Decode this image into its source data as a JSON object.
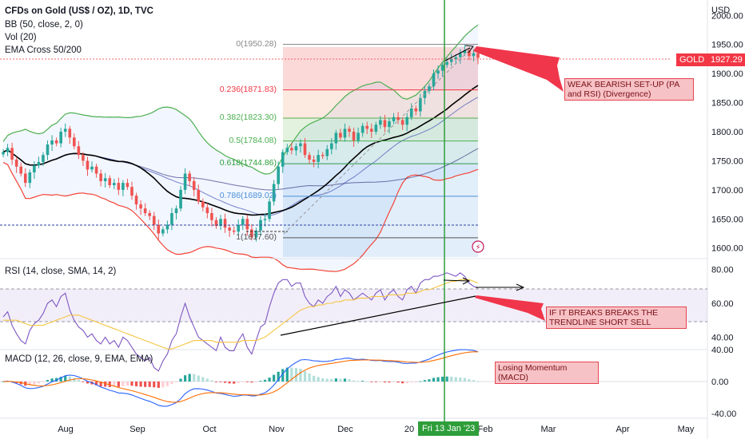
{
  "header": {
    "title": "CFDs on Gold (US$ / OZ), 1D, TVC",
    "indicators": [
      "BB (50, close, 2, 0)",
      "Vol (20)",
      "EMA Cross 50/200"
    ]
  },
  "currency": "USD",
  "price_badge": {
    "symbol": "GOLD",
    "price": "1927.29",
    "color": "#f23645"
  },
  "crosshair_date": "Fri 13 Jan '23",
  "x_ticks": [
    "Aug",
    "Sep",
    "Oct",
    "Nov",
    "Dec",
    "20",
    "Feb",
    "Mar",
    "Apr",
    "May"
  ],
  "fib_labels": [
    "0(1950.28)",
    "0.236(1871.83)",
    "0.382(1823.30)",
    "0.5(1784.08)",
    "0.618(1744.86)",
    "0.786(1689.02)",
    "1(1617.60)"
  ],
  "annotations": {
    "weak_bearish": "WEAK BEARISH SET-UP (PA and RSI) (Divergence)",
    "trendline_break": "IF IT BREAKS BREAKS THE TRENDLINE SHORT SELL",
    "losing_momentum": "Losing Momentum (MACD)"
  },
  "rsi_panel": {
    "label": "RSI (14, close, SMA, 14, 2)"
  },
  "macd_panel": {
    "label": "MACD (12, 26, close, 9, EMA, EMA)"
  },
  "colors": {
    "up": "#26a69a",
    "down": "#ef5350",
    "accent": "#f23645",
    "crosshair": "#2e9e3a"
  },
  "chart_data": [
    {
      "type": "candlestick",
      "title": "CFDs on Gold (US$ / OZ), 1D, TVC",
      "ylabel": "USD",
      "ylim": [
        1590,
        2010
      ],
      "y_ticks": [
        1600,
        1650,
        1700,
        1750,
        1800,
        1850,
        1900,
        1950,
        2000
      ],
      "x_ticks": [
        "Aug",
        "Sep",
        "Oct",
        "Nov",
        "Dec",
        "20",
        "Feb",
        "Mar",
        "Apr",
        "May"
      ],
      "close_series": [
        1765,
        1772,
        1752,
        1740,
        1728,
        1712,
        1730,
        1742,
        1748,
        1760,
        1778,
        1785,
        1780,
        1800,
        1805,
        1790,
        1775,
        1760,
        1750,
        1735,
        1740,
        1728,
        1715,
        1720,
        1708,
        1712,
        1700,
        1712,
        1705,
        1690,
        1675,
        1668,
        1660,
        1655,
        1640,
        1625,
        1632,
        1640,
        1660,
        1668,
        1700,
        1728,
        1715,
        1700,
        1680,
        1670,
        1660,
        1648,
        1638,
        1650,
        1635,
        1630,
        1628,
        1640,
        1650,
        1632,
        1618,
        1630,
        1648,
        1650,
        1680,
        1710,
        1740,
        1765,
        1772,
        1768,
        1775,
        1780,
        1760,
        1752,
        1748,
        1760,
        1758,
        1770,
        1780,
        1798,
        1790,
        1805,
        1800,
        1785,
        1798,
        1810,
        1805,
        1800,
        1812,
        1820,
        1808,
        1818,
        1825,
        1820,
        1812,
        1825,
        1840,
        1835,
        1858,
        1870,
        1878,
        1900,
        1905,
        1915,
        1920,
        1925,
        1928,
        1935,
        1940,
        1930,
        1935,
        1927
      ],
      "fib_levels": [
        {
          "ratio": 0,
          "price": 1950.28
        },
        {
          "ratio": 0.236,
          "price": 1871.83
        },
        {
          "ratio": 0.382,
          "price": 1823.3
        },
        {
          "ratio": 0.5,
          "price": 1784.08
        },
        {
          "ratio": 0.618,
          "price": 1744.86
        },
        {
          "ratio": 0.786,
          "price": 1689.02
        },
        {
          "ratio": 1,
          "price": 1617.6
        }
      ],
      "last_price": 1927.29
    },
    {
      "type": "line",
      "title": "RSI (14, close, SMA, 14, 2)",
      "ylim": [
        35,
        85
      ],
      "y_ticks": [
        40,
        60,
        80
      ],
      "rsi": [
        52,
        55,
        47,
        42,
        38,
        36,
        44,
        48,
        50,
        54,
        60,
        62,
        58,
        64,
        66,
        56,
        50,
        46,
        44,
        40,
        42,
        38,
        36,
        40,
        36,
        38,
        34,
        40,
        38,
        34,
        30,
        28,
        26,
        28,
        22,
        20,
        26,
        30,
        38,
        42,
        52,
        60,
        52,
        46,
        40,
        38,
        36,
        34,
        32,
        40,
        34,
        32,
        32,
        38,
        42,
        34,
        30,
        38,
        46,
        48,
        58,
        66,
        72,
        74,
        74,
        70,
        72,
        72,
        64,
        60,
        58,
        62,
        60,
        64,
        66,
        70,
        64,
        68,
        66,
        62,
        64,
        66,
        64,
        62,
        66,
        68,
        62,
        66,
        68,
        64,
        62,
        68,
        70,
        66,
        72,
        74,
        74,
        76,
        76,
        77,
        78,
        77,
        76,
        78,
        76,
        72,
        70,
        69
      ],
      "rsi_ma": [
        50,
        50,
        50,
        50,
        49,
        48,
        47,
        47,
        47,
        47,
        48,
        49,
        50,
        51,
        52,
        53,
        53,
        53,
        52,
        51,
        50,
        49,
        48,
        47,
        46,
        45,
        44,
        43,
        42,
        41,
        40,
        39,
        38,
        37,
        36,
        35,
        34,
        33,
        33,
        34,
        35,
        36,
        37,
        38,
        38,
        38,
        38,
        38,
        37,
        37,
        37,
        37,
        37,
        37,
        38,
        38,
        38,
        38,
        39,
        40,
        42,
        44,
        46,
        48,
        50,
        52,
        54,
        56,
        57,
        58,
        58,
        59,
        59,
        60,
        60,
        61,
        61,
        62,
        62,
        62,
        63,
        63,
        63,
        64,
        64,
        64,
        64,
        65,
        65,
        65,
        65,
        66,
        66,
        66,
        67,
        68,
        68,
        69,
        70,
        71,
        72,
        73,
        73,
        74,
        74,
        74,
        73,
        72
      ]
    },
    {
      "type": "bar",
      "title": "MACD (12, 26, close, 9, EMA, EMA)",
      "ylim": [
        -42,
        42
      ],
      "y_ticks": [
        -40,
        0,
        40
      ]
    }
  ]
}
